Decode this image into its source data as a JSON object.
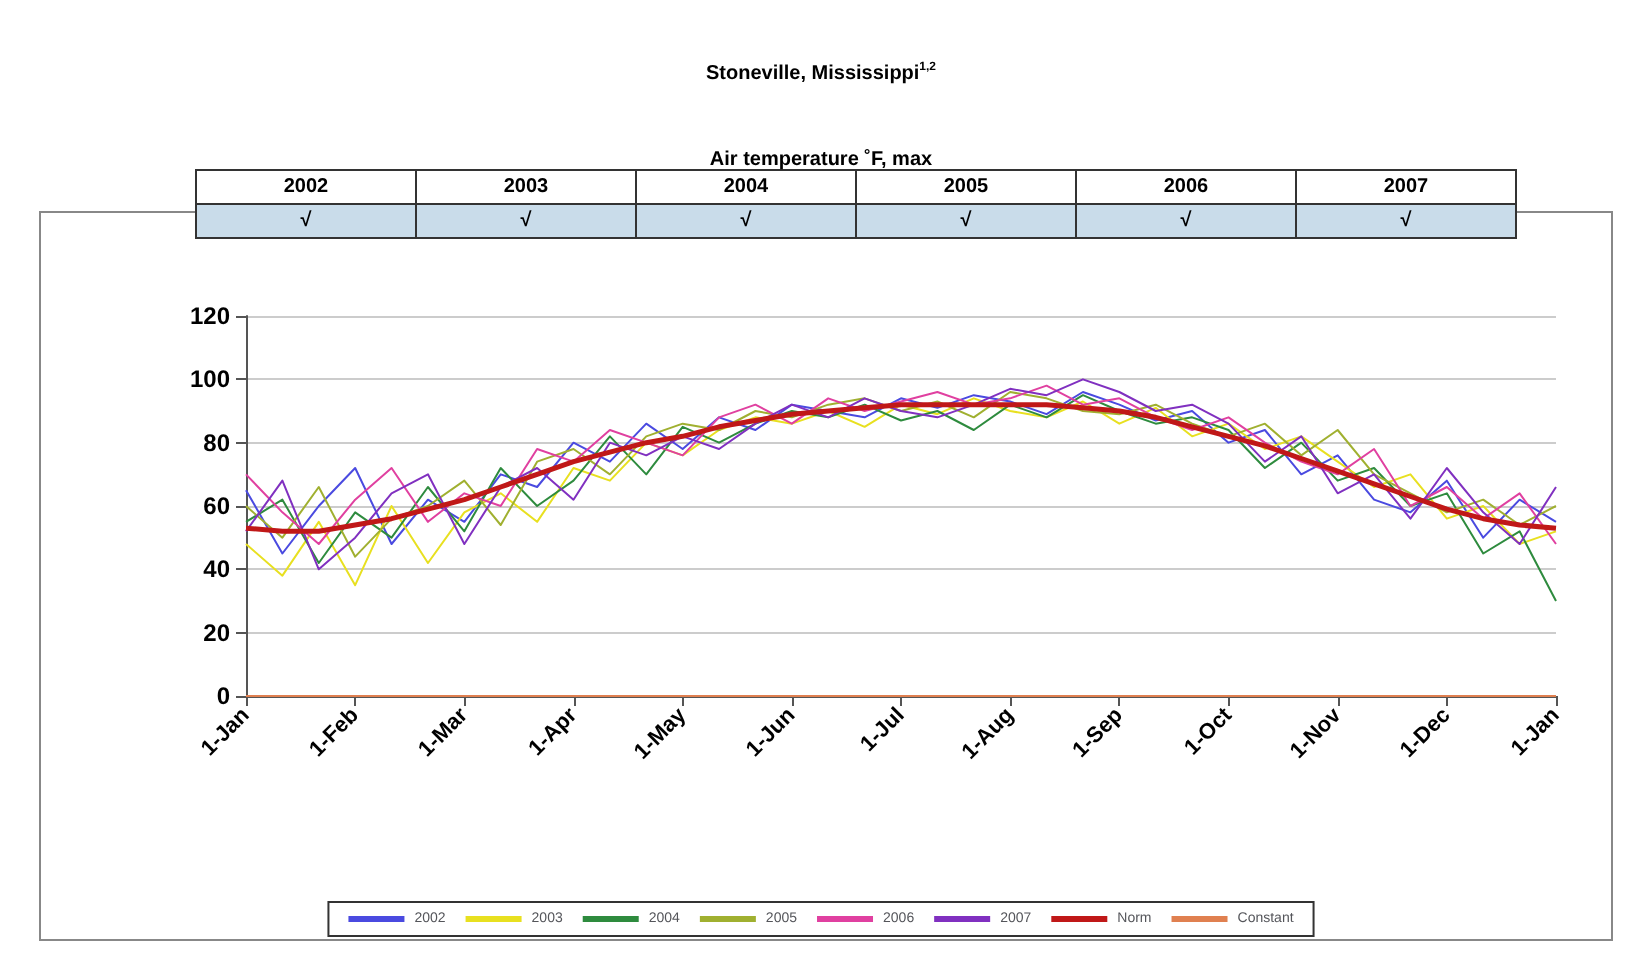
{
  "chart_data": {
    "type": "line",
    "title": "Stoneville, Mississippi$^{1,2}$",
    "subtitle": "Air temperature ˚F, max",
    "annotations": [
      "2002",
      "2003",
      "2004",
      "2005",
      "2006",
      "2007",
      "√",
      "√",
      "√",
      "√",
      "√",
      "√"
    ],
    "categories": [
      "1-Jan",
      null,
      null,
      "1-Feb",
      null,
      null,
      "1-Mar",
      null,
      null,
      "1-Apr",
      null,
      null,
      "1-May",
      null,
      null,
      "1-Jun",
      null,
      null,
      "1-Jul",
      null,
      null,
      "1-Aug",
      null,
      null,
      "1-Sep",
      null,
      null,
      "1-Oct",
      null,
      null,
      "1-Nov",
      null,
      null,
      "1-Dec",
      null,
      null,
      "1-Jan"
    ],
    "ylim": [
      0,
      120
    ],
    "yticks": [
      0,
      20,
      40,
      60,
      80,
      100,
      120
    ],
    "grid": "y",
    "legend": "bottom",
    "marker": "none",
    "line_style": "solid",
    "series": [
      {
        "name": "2002",
        "color": "#4a4ae0",
        "values": [
          65,
          45,
          60,
          72,
          48,
          62,
          55,
          70,
          66,
          80,
          74,
          86,
          78,
          88,
          84,
          92,
          90,
          88,
          94,
          91,
          95,
          93,
          89,
          96,
          92,
          87,
          90,
          80,
          84,
          70,
          76,
          62,
          58,
          68,
          50,
          62,
          55
        ]
      },
      {
        "name": "2003",
        "color": "#e8e020",
        "values": [
          48,
          38,
          55,
          35,
          60,
          42,
          58,
          64,
          55,
          72,
          68,
          80,
          76,
          84,
          88,
          86,
          90,
          85,
          92,
          89,
          94,
          90,
          88,
          93,
          86,
          91,
          82,
          86,
          78,
          82,
          74,
          66,
          70,
          56,
          60,
          48,
          52
        ]
      },
      {
        "name": "2004",
        "color": "#2e8b3e",
        "values": [
          55,
          62,
          42,
          58,
          50,
          66,
          52,
          72,
          60,
          68,
          82,
          70,
          85,
          80,
          86,
          90,
          88,
          92,
          87,
          90,
          84,
          92,
          88,
          95,
          90,
          86,
          88,
          84,
          72,
          80,
          68,
          72,
          60,
          64,
          45,
          52,
          30
        ]
      },
      {
        "name": "2005",
        "color": "#a0b030",
        "values": [
          60,
          50,
          66,
          44,
          56,
          60,
          68,
          54,
          74,
          78,
          70,
          82,
          86,
          84,
          90,
          88,
          92,
          94,
          90,
          93,
          88,
          96,
          94,
          90,
          89,
          92,
          86,
          82,
          86,
          76,
          84,
          70,
          64,
          58,
          62,
          54,
          60
        ]
      },
      {
        "name": "2006",
        "color": "#e040a0",
        "values": [
          70,
          58,
          48,
          62,
          72,
          55,
          64,
          60,
          78,
          74,
          84,
          80,
          76,
          88,
          92,
          86,
          94,
          90,
          93,
          96,
          92,
          94,
          98,
          92,
          94,
          88,
          84,
          88,
          80,
          74,
          70,
          78,
          60,
          66,
          56,
          64,
          48
        ]
      },
      {
        "name": "2007",
        "color": "#8030c0",
        "values": [
          52,
          68,
          40,
          50,
          64,
          70,
          48,
          66,
          72,
          62,
          80,
          76,
          82,
          78,
          86,
          92,
          88,
          94,
          90,
          88,
          92,
          97,
          95,
          100,
          96,
          90,
          92,
          86,
          74,
          82,
          64,
          70,
          56,
          72,
          58,
          48,
          66
        ]
      },
      {
        "name": "Norm",
        "color": "#c01818",
        "values": [
          53,
          52,
          52,
          54,
          56,
          59,
          62,
          66,
          70,
          74,
          77,
          80,
          82,
          85,
          87,
          89,
          90,
          91,
          92,
          92,
          92,
          92,
          92,
          91,
          90,
          88,
          85,
          82,
          79,
          75,
          71,
          67,
          63,
          59,
          56,
          54,
          53
        ]
      },
      {
        "name": "Constant",
        "color": "#e08050",
        "values": [
          0,
          0,
          0,
          0,
          0,
          0,
          0,
          0,
          0,
          0,
          0,
          0,
          0,
          0,
          0,
          0,
          0,
          0,
          0,
          0,
          0,
          0,
          0,
          0,
          0,
          0,
          0,
          0,
          0,
          0,
          0,
          0,
          0,
          0,
          0,
          0,
          0
        ]
      }
    ]
  }
}
